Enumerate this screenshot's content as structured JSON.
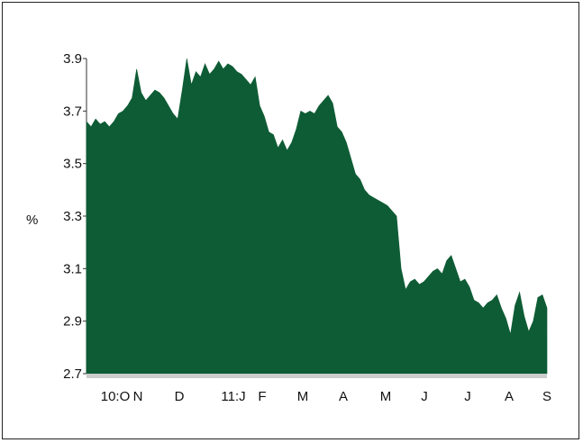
{
  "chart_data": {
    "type": "area",
    "title": "",
    "xlabel": "",
    "ylabel": "%",
    "ylim": [
      2.7,
      3.9
    ],
    "yticks": [
      "3.9",
      "3.7",
      "3.5",
      "3.3",
      "3.1",
      "2.9",
      "2.7"
    ],
    "xticks": [
      "10:O",
      "N",
      "D",
      "11:J",
      "F",
      "M",
      "A",
      "M",
      "J",
      "J",
      "A",
      "S"
    ],
    "grid": false,
    "colors": {
      "fill": "#0e5c35",
      "baseline_band": "#cccccc"
    },
    "series": [
      {
        "values": [
          3.66,
          3.64,
          3.67,
          3.65,
          3.66,
          3.64,
          3.66,
          3.69,
          3.7,
          3.72,
          3.75,
          3.86,
          3.77,
          3.74,
          3.76,
          3.78,
          3.77,
          3.75,
          3.72,
          3.69,
          3.67,
          3.78,
          3.9,
          3.8,
          3.85,
          3.83,
          3.88,
          3.84,
          3.86,
          3.89,
          3.86,
          3.88,
          3.87,
          3.85,
          3.84,
          3.82,
          3.8,
          3.83,
          3.72,
          3.68,
          3.62,
          3.61,
          3.56,
          3.59,
          3.55,
          3.58,
          3.63,
          3.7,
          3.69,
          3.7,
          3.69,
          3.72,
          3.74,
          3.76,
          3.73,
          3.64,
          3.62,
          3.58,
          3.52,
          3.46,
          3.44,
          3.4,
          3.38,
          3.37,
          3.36,
          3.35,
          3.34,
          3.32,
          3.3,
          3.1,
          3.02,
          3.05,
          3.06,
          3.04,
          3.05,
          3.07,
          3.09,
          3.1,
          3.08,
          3.13,
          3.15,
          3.1,
          3.05,
          3.06,
          3.03,
          2.98,
          2.97,
          2.95,
          2.97,
          2.98,
          3.0,
          2.95,
          2.91,
          2.85,
          2.96,
          3.01,
          2.92,
          2.86,
          2.9,
          2.99,
          3.0,
          2.95
        ]
      }
    ]
  }
}
